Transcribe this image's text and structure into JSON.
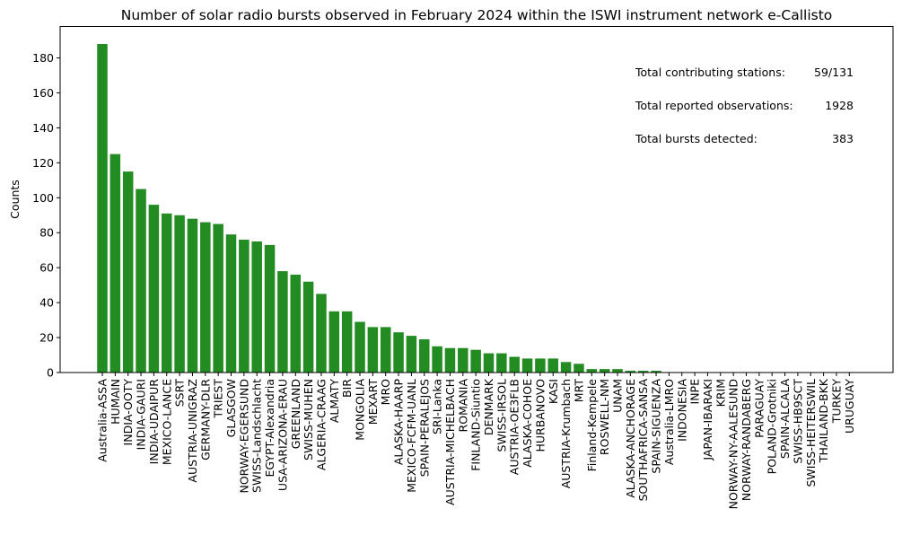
{
  "chart_data": {
    "type": "bar",
    "title": "Number of solar radio bursts observed in February 2024 within the ISWI instrument network e-Callisto",
    "xlabel": "",
    "ylabel": "Counts",
    "ylim": [
      0,
      198
    ],
    "yticks": [
      0,
      20,
      40,
      60,
      80,
      100,
      120,
      140,
      160,
      180
    ],
    "grid": false,
    "bar_color": "#228B22",
    "categories": [
      "Australia-ASSA",
      "HUMAIN",
      "INDIA-OOTY",
      "INDIA-GAURI",
      "INDIA-UDAIPUR",
      "MEXICO-LANCE",
      "SSRT",
      "AUSTRIA-UNIGRAZ",
      "GERMANY-DLR",
      "TRIEST",
      "GLASGOW",
      "NORWAY-EGERSUND",
      "SWISS-Landschlacht",
      "EGYPT-Alexandria",
      "USA-ARIZONA-ERAU",
      "GREENLAND",
      "SWISS-MUHEN",
      "ALGERIA-CRAAG",
      "ALMATY",
      "BIR",
      "MONGOLIA",
      "MEXART",
      "MRO",
      "ALASKA-HAARP",
      "MEXICO-FCFM-UANL",
      "SPAIN-PERALEJOS",
      "SRI-Lanka",
      "AUSTRIA-MICHELBACH",
      "ROMANIA",
      "FINLAND-Siuntio",
      "DENMARK",
      "SWISS-IRSOL",
      "AUSTRIA-OE3FLB",
      "ALASKA-COHOE",
      "HURBANOVO",
      "KASI",
      "AUSTRIA-Krumbach",
      "MRT",
      "Finland-Kempele",
      "ROSWELL-NM",
      "UNAM",
      "ALASKA-ANCHORAGE",
      "SOUTHAFRICA-SANSA",
      "SPAIN-SIGUENZA",
      "Australia-LMRO",
      "INDONESIA",
      "INPE",
      "JAPAN-IBARAKI",
      "KRIM",
      "NORWAY-NY-AALESUND",
      "NORWAY-RANDABERG",
      "PARAGUAY",
      "POLAND-Grotniki",
      "SPAIN-ALCALA",
      "SWISS-HB9SCT",
      "SWISS-HEITERSWIL",
      "THAILAND-BKK",
      "TURKEY",
      "URUGUAY"
    ],
    "values": [
      188,
      125,
      115,
      105,
      96,
      91,
      90,
      88,
      86,
      85,
      79,
      76,
      75,
      73,
      58,
      56,
      52,
      45,
      35,
      35,
      29,
      26,
      26,
      23,
      21,
      19,
      15,
      14,
      14,
      13,
      11,
      11,
      9,
      8,
      8,
      8,
      6,
      5,
      2,
      2,
      2,
      1,
      1,
      1,
      0,
      0,
      0,
      0,
      0,
      0,
      0,
      0,
      0,
      0,
      0,
      0,
      0,
      0,
      0
    ],
    "annotations": [
      {
        "label": "Total contributing stations:",
        "value": "59/131"
      },
      {
        "label": "Total reported observations:",
        "value": "1928"
      },
      {
        "label": "Total bursts detected:",
        "value": "383"
      }
    ]
  }
}
